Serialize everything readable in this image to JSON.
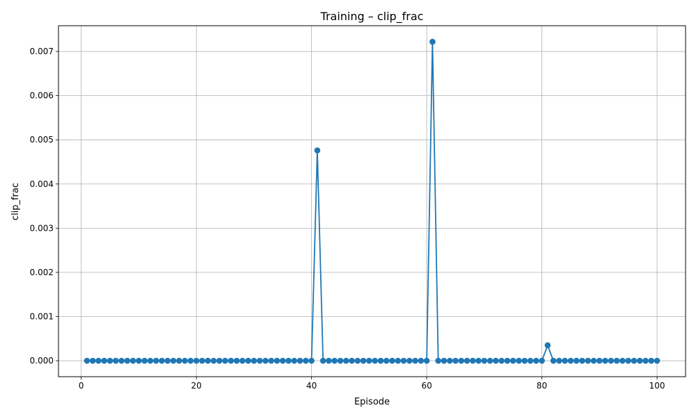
{
  "chart_data": {
    "type": "line",
    "title": "Training – clip_frac",
    "xlabel": "Episode",
    "ylabel": "clip_frac",
    "xlim": [
      -3.95,
      104.95
    ],
    "ylim": [
      -0.000361,
      0.007583
    ],
    "xticks": [
      0,
      20,
      40,
      60,
      80,
      100
    ],
    "xtick_labels": [
      "0",
      "20",
      "40",
      "60",
      "80",
      "100"
    ],
    "yticks": [
      0,
      0.001,
      0.002,
      0.003,
      0.004,
      0.005,
      0.006,
      0.007
    ],
    "ytick_labels": [
      "0.000",
      "0.001",
      "0.002",
      "0.003",
      "0.004",
      "0.005",
      "0.006",
      "0.007"
    ],
    "grid": true,
    "marker": "circle",
    "colors": {
      "series": "#1f77b4",
      "grid": "#b0b0b0",
      "axes": "#000000"
    },
    "series": [
      {
        "x": [
          1,
          2,
          3,
          4,
          5,
          6,
          7,
          8,
          9,
          10,
          11,
          12,
          13,
          14,
          15,
          16,
          17,
          18,
          19,
          20,
          21,
          22,
          23,
          24,
          25,
          26,
          27,
          28,
          29,
          30,
          31,
          32,
          33,
          34,
          35,
          36,
          37,
          38,
          39,
          40,
          41,
          42,
          43,
          44,
          45,
          46,
          47,
          48,
          49,
          50,
          51,
          52,
          53,
          54,
          55,
          56,
          57,
          58,
          59,
          60,
          61,
          62,
          63,
          64,
          65,
          66,
          67,
          68,
          69,
          70,
          71,
          72,
          73,
          74,
          75,
          76,
          77,
          78,
          79,
          80,
          81,
          82,
          83,
          84,
          85,
          86,
          87,
          88,
          89,
          90,
          91,
          92,
          93,
          94,
          95,
          96,
          97,
          98,
          99,
          100
        ],
        "values": [
          0,
          0,
          0,
          0,
          0,
          0,
          0,
          0,
          0,
          0,
          0,
          0,
          0,
          0,
          0,
          0,
          0,
          0,
          0,
          0,
          0,
          0,
          0,
          0,
          0,
          0,
          0,
          0,
          0,
          0,
          0,
          0,
          0,
          0,
          0,
          0,
          0,
          0,
          0,
          0,
          0.00476,
          0,
          0,
          0,
          0,
          0,
          0,
          0,
          0,
          0,
          0,
          0,
          0,
          0,
          0,
          0,
          0,
          0,
          0,
          0,
          0.00722,
          0,
          0,
          0,
          0,
          0,
          0,
          0,
          0,
          0,
          0,
          0,
          0,
          0,
          0,
          0,
          0,
          0,
          0,
          0,
          0.00035,
          0,
          0,
          0,
          0,
          0,
          0,
          0,
          0,
          0,
          0,
          0,
          0,
          0,
          0,
          0,
          0,
          0,
          0,
          0
        ]
      }
    ]
  }
}
